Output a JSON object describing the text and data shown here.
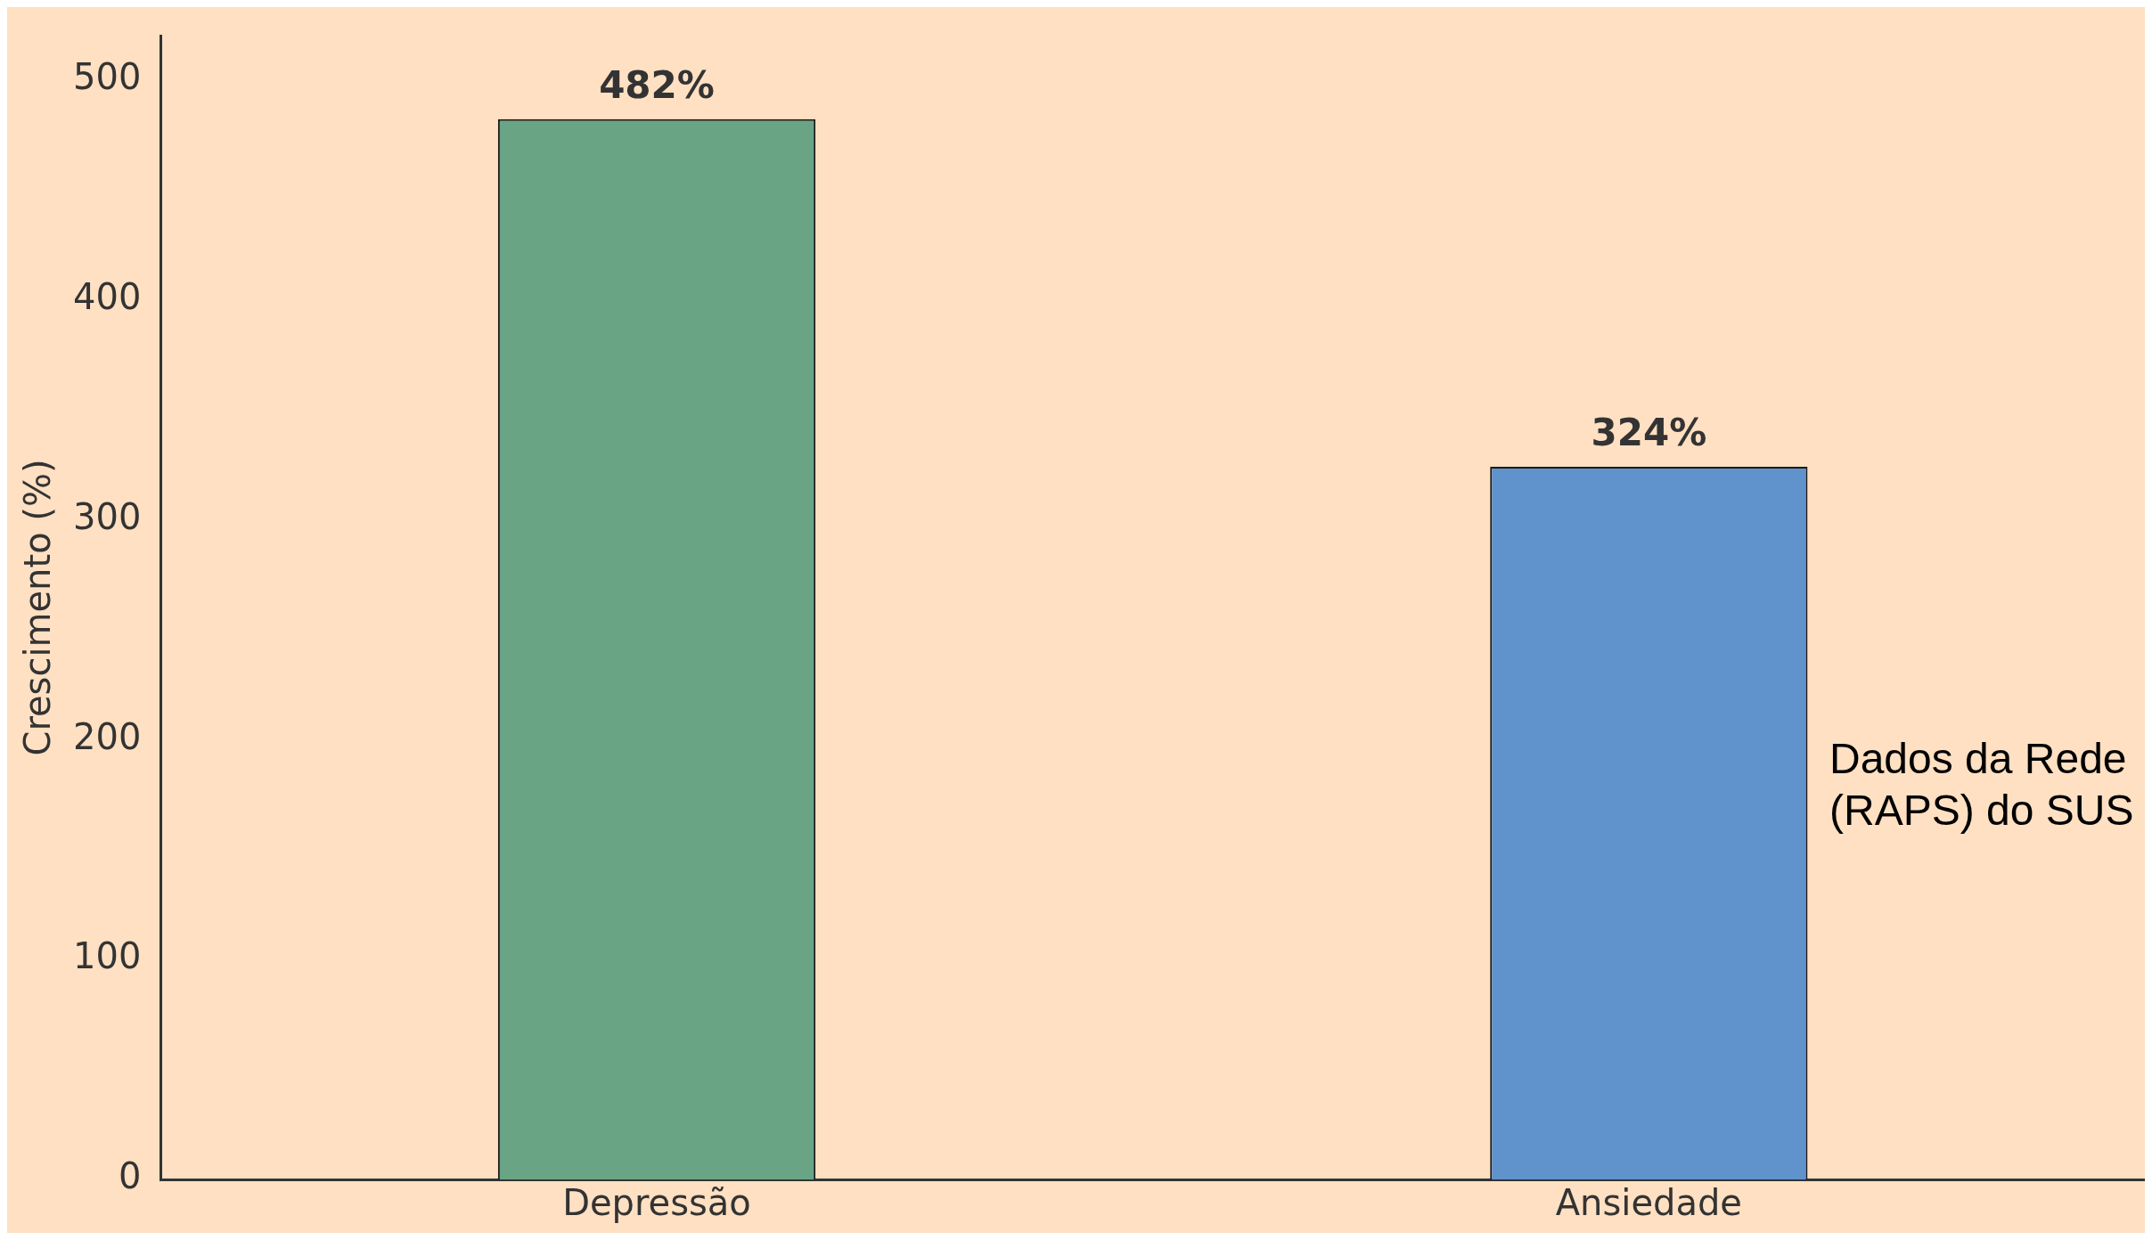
{
  "chart_data": {
    "type": "bar",
    "ylabel": "Crescimento (%)",
    "categories": [
      "Depressão",
      "Ansiedade"
    ],
    "values": [
      482,
      324
    ],
    "value_labels": [
      "482%",
      "324%"
    ],
    "colors": [
      "#69a584",
      "#6092cc"
    ],
    "ylim": [
      0,
      520
    ],
    "yticks": [
      0,
      100,
      200,
      300,
      400,
      500
    ],
    "grid": false,
    "legend": false,
    "annotations": [
      "Dados da Rede (RAPS) do SUS"
    ]
  }
}
